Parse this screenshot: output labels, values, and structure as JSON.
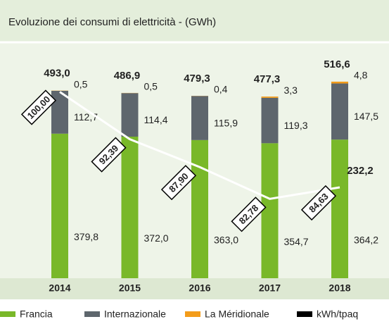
{
  "chart_data": {
    "type": "bar",
    "stacked": true,
    "title": "Evoluzione dei consumi di elettricità - (GWh)",
    "categories": [
      "2014",
      "2015",
      "2016",
      "2017",
      "2018"
    ],
    "series": [
      {
        "name": "Francia",
        "color": "#79b829",
        "values": [
          379.8,
          372.0,
          363.0,
          354.7,
          364.2
        ],
        "value_labels": [
          "379,8",
          "372,0",
          "363,0",
          "354,7",
          "364,2"
        ]
      },
      {
        "name": "Internazionale",
        "color": "#5e666d",
        "values": [
          112.7,
          114.4,
          115.9,
          119.3,
          147.5
        ],
        "value_labels": [
          "112,7",
          "114,4",
          "115,9",
          "119,3",
          "147,5"
        ]
      },
      {
        "name": "La Méridionale",
        "color": "#f39c1a",
        "values": [
          0.5,
          0.5,
          0.4,
          3.3,
          4.8
        ],
        "value_labels": [
          "0,5",
          "0,5",
          "0,4",
          "3,3",
          "4,8"
        ]
      },
      {
        "name": "kWh/tpaq",
        "type": "line",
        "axis": "y2",
        "color": "#000000",
        "line_color": "#ffffff",
        "values": [
          100.0,
          92.39,
          87.9,
          82.78,
          84.63
        ],
        "value_labels": [
          "100,00",
          "92,39",
          "87,90",
          "82,78",
          "84,63"
        ]
      }
    ],
    "totals": [
      493.0,
      486.9,
      479.3,
      477.3,
      516.6
    ],
    "total_labels": [
      "493,0",
      "486,9",
      "479,3",
      "477,3",
      "516,6"
    ],
    "annotation": "232,2",
    "ylim": [
      0,
      620
    ],
    "y2lim": [
      70,
      108
    ],
    "legend": "bottom"
  }
}
